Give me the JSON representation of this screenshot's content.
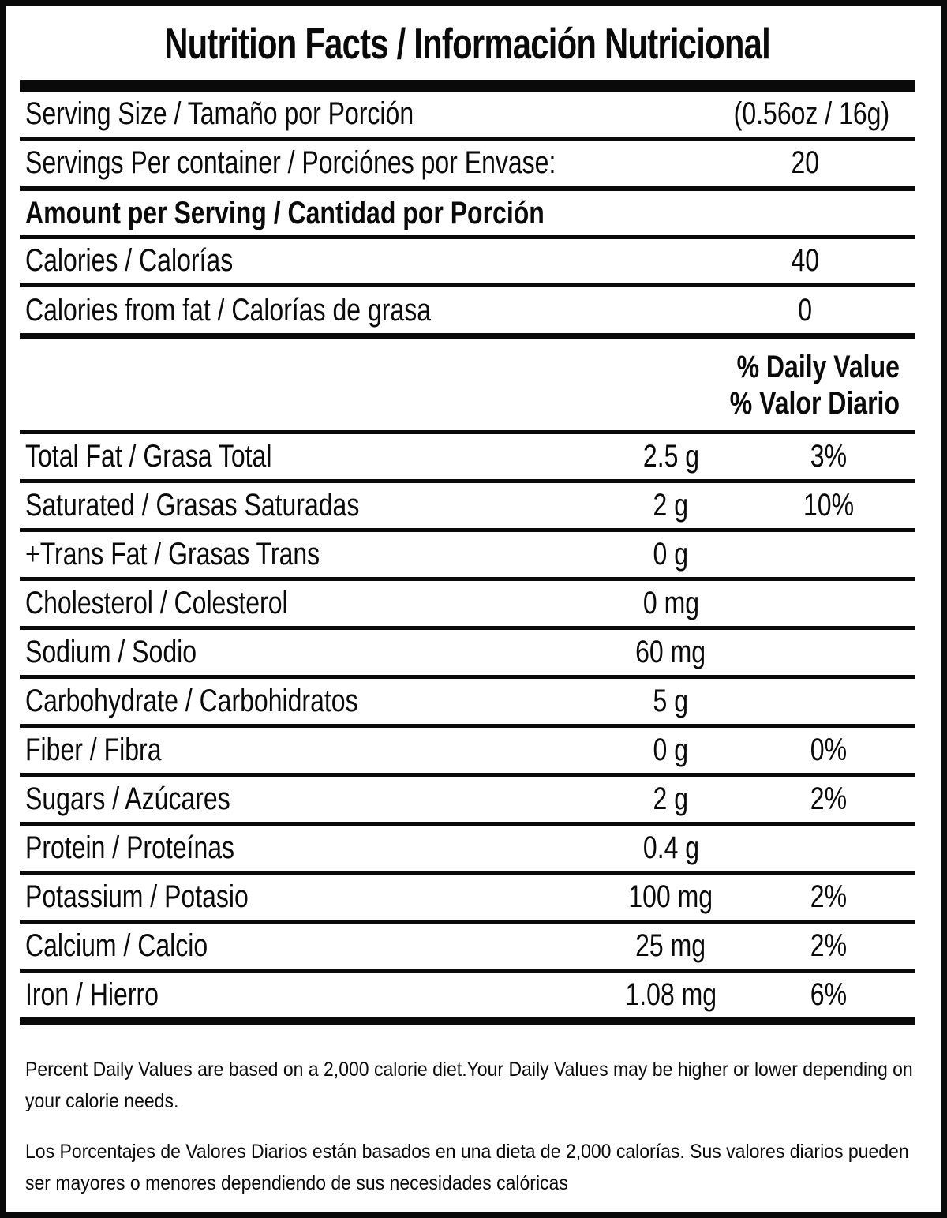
{
  "colors": {
    "text": "#0a0a0a",
    "background": "#ffffff"
  },
  "header": {
    "title": "Nutrition Facts / Información Nutricional"
  },
  "serving_info": {
    "serving_size_label": "Serving Size / Tamaño por Porción",
    "serving_size_value": "(0.56oz / 16g)",
    "servings_per_container_label": "Servings Per container / Porciónes por Envase:",
    "servings_per_container_value": "20"
  },
  "amount_section": {
    "header": "Amount per Serving / Cantidad por Porción",
    "calories_label": "Calories / Calorías",
    "calories_value": "40",
    "calories_from_fat_label": "Calories from fat / Calorías de grasa",
    "calories_from_fat_value": "0"
  },
  "daily_value_header": {
    "line1": "% Daily Value",
    "line2": "% Valor Diario"
  },
  "nutrients": {
    "rows": [
      {
        "label": "Total Fat / Grasa Total",
        "amount": "2.5 g",
        "daily_value": "3%"
      },
      {
        "label": "Saturated / Grasas Saturadas",
        "amount": "2 g",
        "daily_value": "10%"
      },
      {
        "label": "+Trans Fat / Grasas Trans",
        "amount": "0 g",
        "daily_value": ""
      },
      {
        "label": "Cholesterol / Colesterol",
        "amount": "0 mg",
        "daily_value": ""
      },
      {
        "label": "Sodium / Sodio",
        "amount": "60 mg",
        "daily_value": ""
      },
      {
        "label": "Carbohydrate / Carbohidratos",
        "amount": "5 g",
        "daily_value": ""
      },
      {
        "label": "Fiber / Fibra",
        "amount": "0 g",
        "daily_value": "0%"
      },
      {
        "label": "Sugars / Azúcares",
        "amount": "2 g",
        "daily_value": "2%"
      },
      {
        "label": "Protein / Proteínas",
        "amount": "0.4 g",
        "daily_value": ""
      },
      {
        "label": "Potassium / Potasio",
        "amount": "100 mg",
        "daily_value": "2%"
      },
      {
        "label": "Calcium / Calcio",
        "amount": "25 mg",
        "daily_value": "2%"
      },
      {
        "label": "Iron / Hierro",
        "amount": "1.08 mg",
        "daily_value": "6%"
      }
    ]
  },
  "footnotes": {
    "english": "Percent Daily Values are based on a 2,000 calorie diet.Your Daily Values may be higher or lower depending on your calorie needs.",
    "spanish": "Los Porcentajes de Valores Diarios están basados en una dieta de 2,000 calorías. Sus valores diarios pueden ser mayores o menores dependiendo de sus necesidades calóricas"
  }
}
